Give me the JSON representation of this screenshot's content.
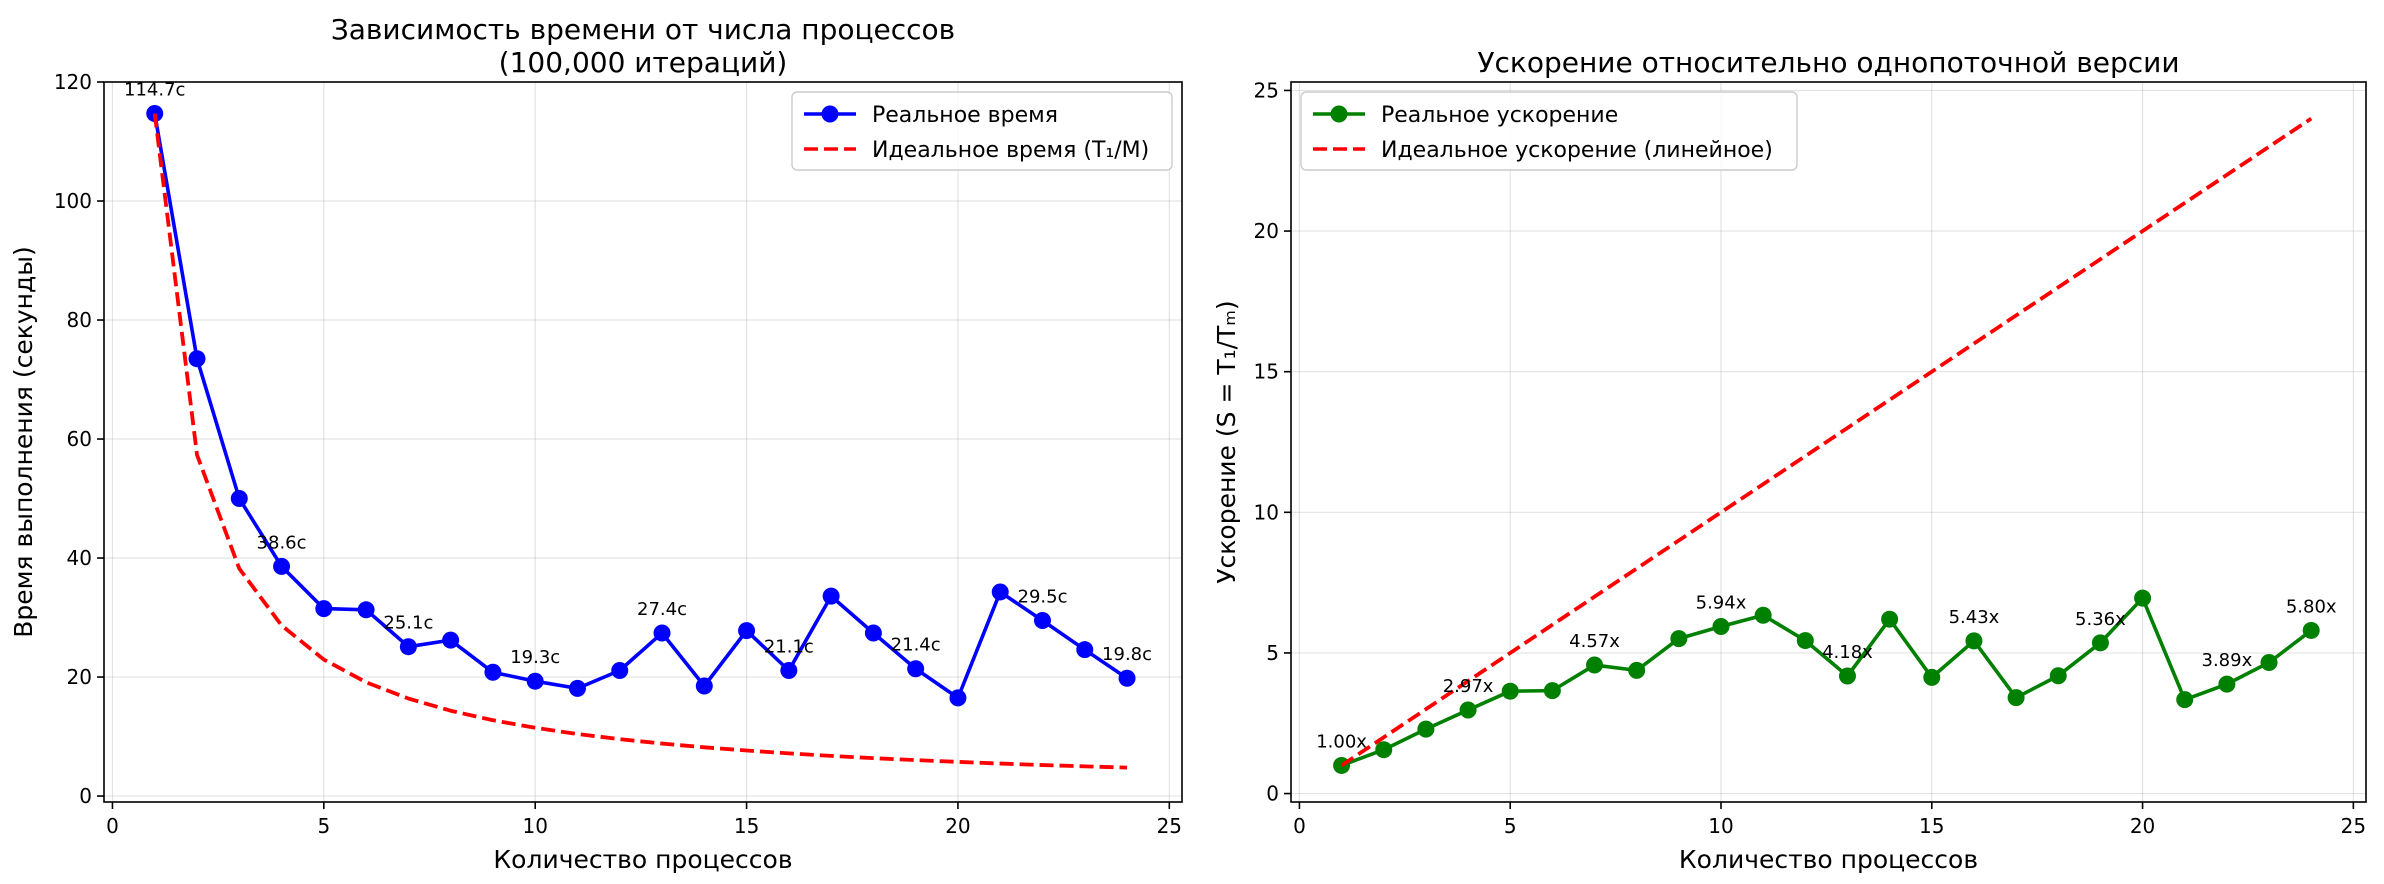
{
  "chart_data": [
    {
      "type": "line",
      "title": "Зависимость времени от числа процессов\n(100,000 итераций)",
      "xlabel": "Количество процессов",
      "ylabel": "Время выполнения (секунды)",
      "xlim": [
        -0.2,
        25.3
      ],
      "ylim": [
        -1,
        120
      ],
      "xticks": [
        0,
        5,
        10,
        15,
        20,
        25
      ],
      "yticks": [
        0,
        20,
        40,
        60,
        80,
        100,
        120
      ],
      "grid": true,
      "legend_position": "top-right",
      "x": [
        1,
        2,
        3,
        4,
        5,
        6,
        7,
        8,
        9,
        10,
        11,
        12,
        13,
        14,
        15,
        16,
        17,
        18,
        19,
        20,
        21,
        22,
        23,
        24
      ],
      "series": [
        {
          "name": "Реальное время",
          "style": "line-marker",
          "color": "#0000ff",
          "values": [
            114.7,
            73.5,
            50.0,
            38.6,
            31.5,
            31.3,
            25.1,
            26.2,
            20.8,
            19.3,
            18.1,
            21.1,
            27.4,
            18.5,
            27.8,
            21.1,
            33.6,
            27.4,
            21.4,
            16.5,
            34.3,
            29.5,
            24.6,
            19.8
          ]
        },
        {
          "name": "Идеальное время (T₁/M)",
          "style": "dashed",
          "color": "#ff0000",
          "values": [
            114.7,
            57.35,
            38.23,
            28.68,
            22.94,
            19.12,
            16.39,
            14.34,
            12.74,
            11.47,
            10.43,
            9.56,
            8.82,
            8.19,
            7.65,
            7.17,
            6.75,
            6.37,
            6.04,
            5.74,
            5.46,
            5.21,
            4.99,
            4.78
          ]
        }
      ],
      "annotations": [
        {
          "x": 1,
          "y": 114.7,
          "text": "114.7с"
        },
        {
          "x": 4,
          "y": 38.6,
          "text": "38.6с"
        },
        {
          "x": 7,
          "y": 25.1,
          "text": "25.1с"
        },
        {
          "x": 10,
          "y": 19.3,
          "text": "19.3с"
        },
        {
          "x": 13,
          "y": 27.4,
          "text": "27.4с"
        },
        {
          "x": 16,
          "y": 21.1,
          "text": "21.1с"
        },
        {
          "x": 19,
          "y": 21.4,
          "text": "21.4с"
        },
        {
          "x": 22,
          "y": 29.5,
          "text": "29.5с"
        },
        {
          "x": 24,
          "y": 19.8,
          "text": "19.8с"
        }
      ]
    },
    {
      "type": "line",
      "title": "Ускорение относительно однопоточной версии",
      "xlabel": "Количество процессов",
      "ylabel": "Ускорение (S = T₁/Tₘ)",
      "xlim": [
        -0.2,
        25.3
      ],
      "ylim": [
        -0.3,
        25.3
      ],
      "xticks": [
        0,
        5,
        10,
        15,
        20,
        25
      ],
      "yticks": [
        0,
        5,
        10,
        15,
        20,
        25
      ],
      "grid": true,
      "legend_position": "top-left",
      "x": [
        1,
        2,
        3,
        4,
        5,
        6,
        7,
        8,
        9,
        10,
        11,
        12,
        13,
        14,
        15,
        16,
        17,
        18,
        19,
        20,
        21,
        22,
        23,
        24
      ],
      "series": [
        {
          "name": "Реальное ускорение",
          "style": "line-marker",
          "color": "#008000",
          "values": [
            1.0,
            1.56,
            2.29,
            2.97,
            3.64,
            3.66,
            4.57,
            4.38,
            5.51,
            5.94,
            6.34,
            5.44,
            4.18,
            6.2,
            4.13,
            5.43,
            3.41,
            4.19,
            5.36,
            6.95,
            3.34,
            3.89,
            4.66,
            5.8
          ]
        },
        {
          "name": "Идеальное ускорение (линейное)",
          "style": "dashed",
          "color": "#ff0000",
          "values": [
            1,
            2,
            3,
            4,
            5,
            6,
            7,
            8,
            9,
            10,
            11,
            12,
            13,
            14,
            15,
            16,
            17,
            18,
            19,
            20,
            21,
            22,
            23,
            24
          ]
        }
      ],
      "annotations": [
        {
          "x": 1,
          "y": 1.0,
          "text": "1.00x"
        },
        {
          "x": 4,
          "y": 2.97,
          "text": "2.97x"
        },
        {
          "x": 7,
          "y": 4.57,
          "text": "4.57x"
        },
        {
          "x": 10,
          "y": 5.94,
          "text": "5.94x"
        },
        {
          "x": 13,
          "y": 4.18,
          "text": "4.18x"
        },
        {
          "x": 16,
          "y": 5.43,
          "text": "5.43x"
        },
        {
          "x": 19,
          "y": 5.36,
          "text": "5.36x"
        },
        {
          "x": 22,
          "y": 3.89,
          "text": "3.89x"
        },
        {
          "x": 24,
          "y": 5.8,
          "text": "5.80x"
        }
      ]
    }
  ]
}
